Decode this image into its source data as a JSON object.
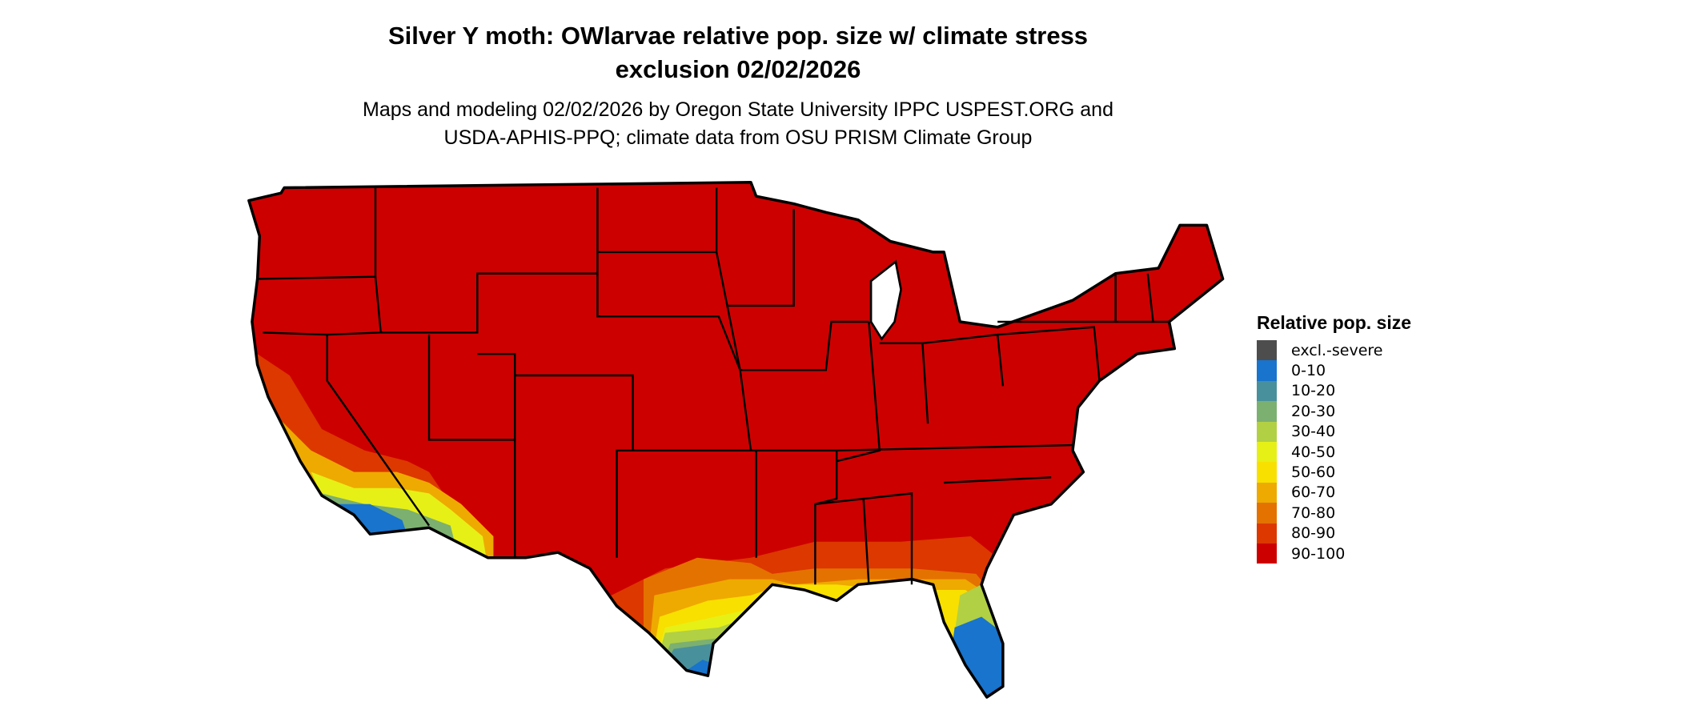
{
  "title": {
    "line1": "Silver Y moth: OWlarvae relative pop. size w/ climate stress",
    "line2": "exclusion 02/02/2026"
  },
  "subtitle": {
    "line1": "Maps and modeling 02/02/2026 by Oregon State University IPPC USPEST.ORG and",
    "line2": "USDA-APHIS-PPQ; climate data from OSU PRISM Climate Group"
  },
  "map": {
    "region": "Contiguous United States",
    "dominant_class": "90-100"
  },
  "legend": {
    "title": "Relative pop. size",
    "items": [
      {
        "label": "excl.-severe",
        "color": "#4d4d4d"
      },
      {
        "label": "0-10",
        "color": "#1874cd"
      },
      {
        "label": "10-20",
        "color": "#48909c"
      },
      {
        "label": "20-30",
        "color": "#7cb070"
      },
      {
        "label": "30-40",
        "color": "#b2d044"
      },
      {
        "label": "40-50",
        "color": "#e6f016"
      },
      {
        "label": "50-60",
        "color": "#f8e000"
      },
      {
        "label": "60-70",
        "color": "#eeaa00"
      },
      {
        "label": "70-80",
        "color": "#e47200"
      },
      {
        "label": "80-90",
        "color": "#dc3800"
      },
      {
        "label": "90-100",
        "color": "#cd0000"
      }
    ]
  }
}
